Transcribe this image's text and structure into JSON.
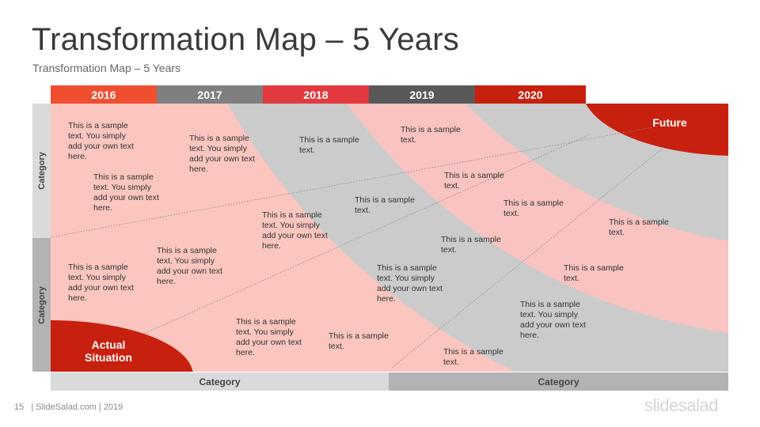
{
  "title": "Transformation Map – 5 Years",
  "subtitle": "Transformation Map – 5 Years",
  "years": [
    {
      "label": "2016",
      "color": "#F04E30"
    },
    {
      "label": "2017",
      "color": "#7F7F7F"
    },
    {
      "label": "2018",
      "color": "#E23A3F"
    },
    {
      "label": "2019",
      "color": "#595959"
    },
    {
      "label": "2020",
      "color": "#C8200E"
    }
  ],
  "side_categories": [
    "Category",
    "Category"
  ],
  "bottom_categories": [
    "Category",
    "Category"
  ],
  "future_label": "Future",
  "actual_label_line1": "Actual",
  "actual_label_line2": "Situation",
  "texts": {
    "t1": "This is a sample text. You simply add your own text here.",
    "t2": "This is a sample text. You simply add your own text here.",
    "t3": "This is a sample text. You simply add your own text here.",
    "t4": "This is a sample text.",
    "t5": "This is a sample text.",
    "t6": "This is a sample text. You simply add your own text here.",
    "t7": "This is a sample text.",
    "t8": "This is a sample text.",
    "t9": "This is a sample text. You simply add your own text here.",
    "t10": "This is a sample text.",
    "t11": "This is a sample text.",
    "t12": "This is a sample text. You simply add your own text here.",
    "t13": "This is a sample text. You simply add your own text here.",
    "t14": "This is a sample text. You simply add your own text here.",
    "t15": "This is a sample text.",
    "t16": "This is a sample text.",
    "t17": "This is a sample text. You simply add your own text here.",
    "t18": "This is a sample text."
  },
  "footer": {
    "page_number": "15",
    "credit": "| SlideSalad.com | 2019",
    "brand": "slidesalad"
  },
  "colors": {
    "pink_band": "#F8C3C0",
    "gray_band": "#CBCBCB",
    "salmon_band": "#F1BCB2",
    "dark_red": "#C8200E",
    "side_light": "#DADADA",
    "side_dark": "#B3B3B3"
  }
}
